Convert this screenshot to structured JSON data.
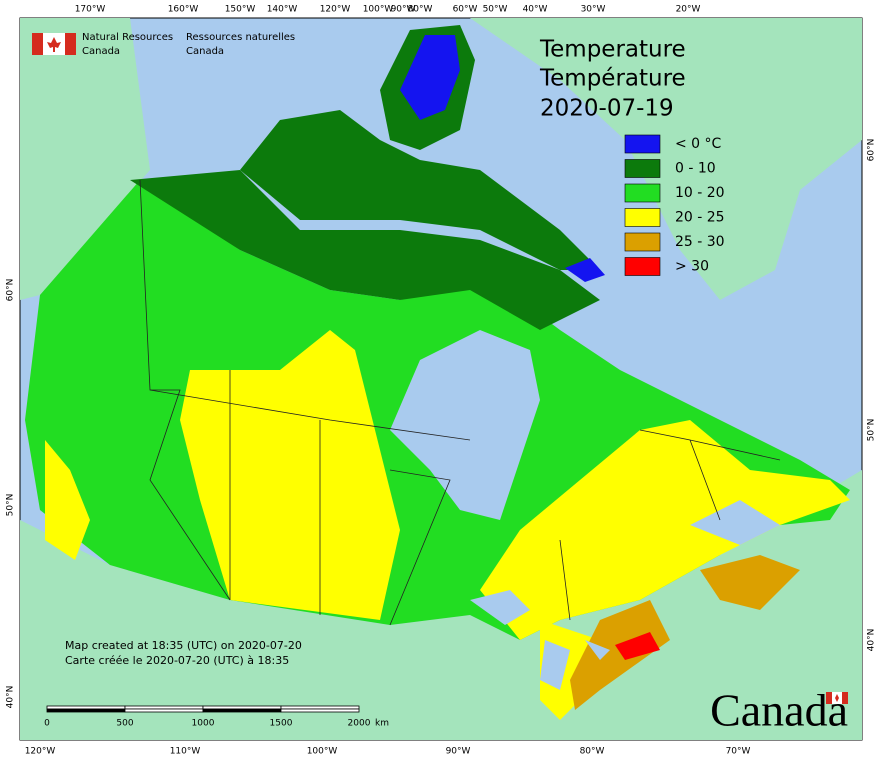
{
  "header": {
    "en": [
      "Natural Resources",
      "Canada"
    ],
    "fr": [
      "Ressources naturelles",
      "Canada"
    ]
  },
  "title": [
    "Temperature",
    "Température"
  ],
  "date": "2020-07-19",
  "legend": [
    {
      "label": "< 0 °C",
      "color": "#1414f0"
    },
    {
      "label": "0 - 10",
      "color": "#0c7a0c"
    },
    {
      "label": "10 - 20",
      "color": "#22dd22"
    },
    {
      "label": "20 - 25",
      "color": "#ffff00"
    },
    {
      "label": "25 - 30",
      "color": "#dba000"
    },
    {
      "label": "> 30",
      "color": "#ff0000"
    }
  ],
  "graticule": {
    "top": [
      "170°W",
      "160°W",
      "150°W",
      "140°W",
      "120°W",
      "100°W",
      "90°W",
      "80°W",
      "60°W",
      "50°W",
      "40°W",
      "30°W",
      "20°W"
    ],
    "bottom": [
      "120°W",
      "110°W",
      "100°W",
      "90°W",
      "80°W",
      "70°W"
    ],
    "left": [
      "60°N",
      "50°N",
      "40°N"
    ],
    "right": [
      "60°N",
      "50°N",
      "40°N"
    ]
  },
  "scale_bar": {
    "labels": [
      "0",
      "500",
      "1000",
      "1500",
      "2000"
    ],
    "unit": "km"
  },
  "footer": [
    "Map created at 18:35 (UTC) on 2020-07-20",
    "Carte créée le 2020-07-20 (UTC) à 18:35"
  ],
  "wordmark": "Canada"
}
